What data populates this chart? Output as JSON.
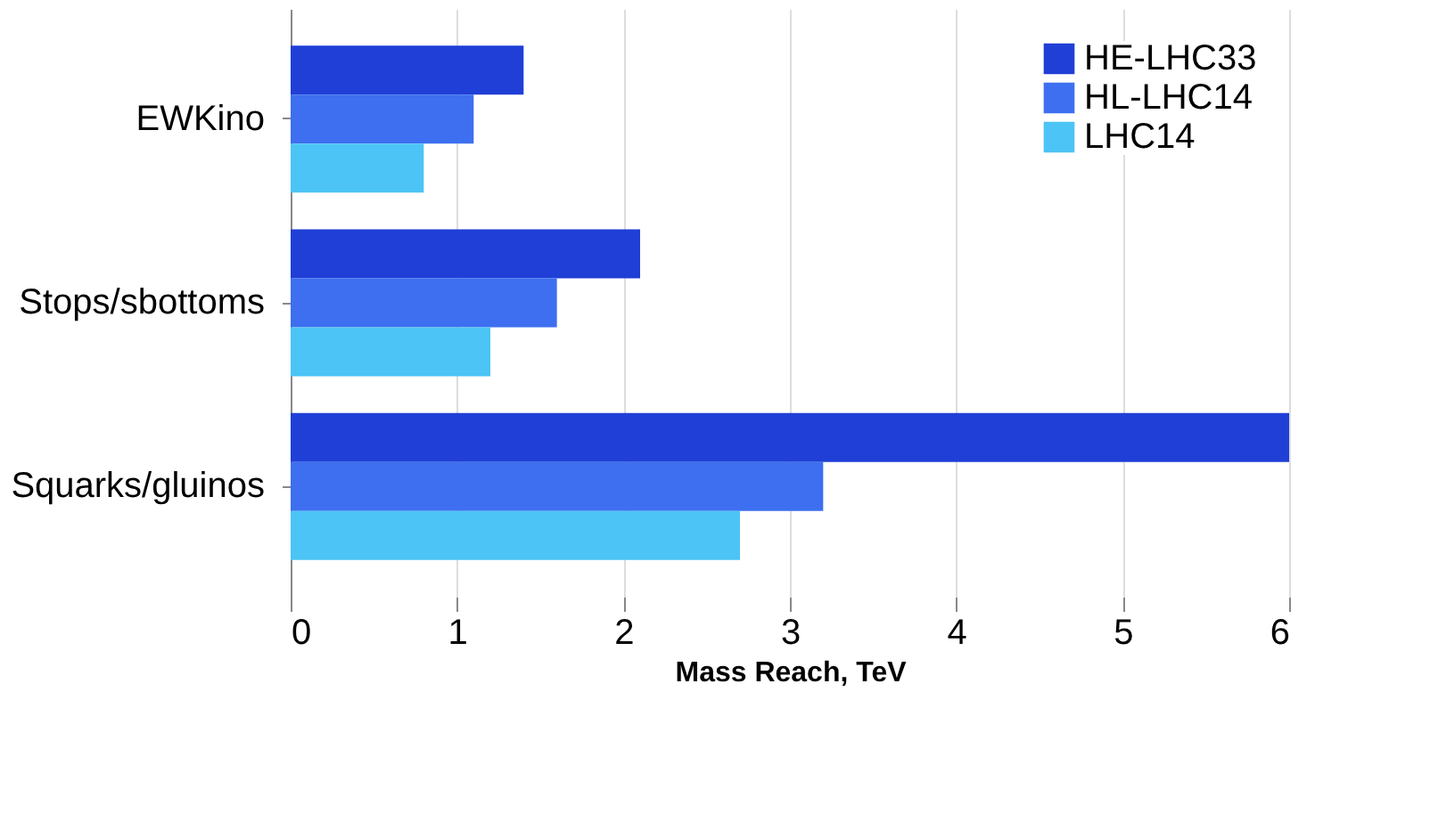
{
  "chart_data": {
    "type": "bar",
    "orientation": "horizontal",
    "xlabel": "Mass Reach, TeV",
    "categories": [
      "EWKino",
      "Stops/sbottoms",
      "Squarks/gluinos"
    ],
    "series": [
      {
        "name": "HE-LHC33",
        "color": "#1f3fd6",
        "values": [
          1.4,
          2.1,
          6.0
        ]
      },
      {
        "name": "HL-LHC14",
        "color": "#3d6ff0",
        "values": [
          1.1,
          1.6,
          3.2
        ]
      },
      {
        "name": "LHC14",
        "color": "#4cc4f5",
        "values": [
          0.8,
          1.2,
          2.7
        ]
      }
    ],
    "xlim": [
      0,
      6
    ],
    "xticks": [
      0,
      1,
      2,
      3,
      4,
      5,
      6
    ],
    "grid": "x",
    "legend": "top right"
  }
}
